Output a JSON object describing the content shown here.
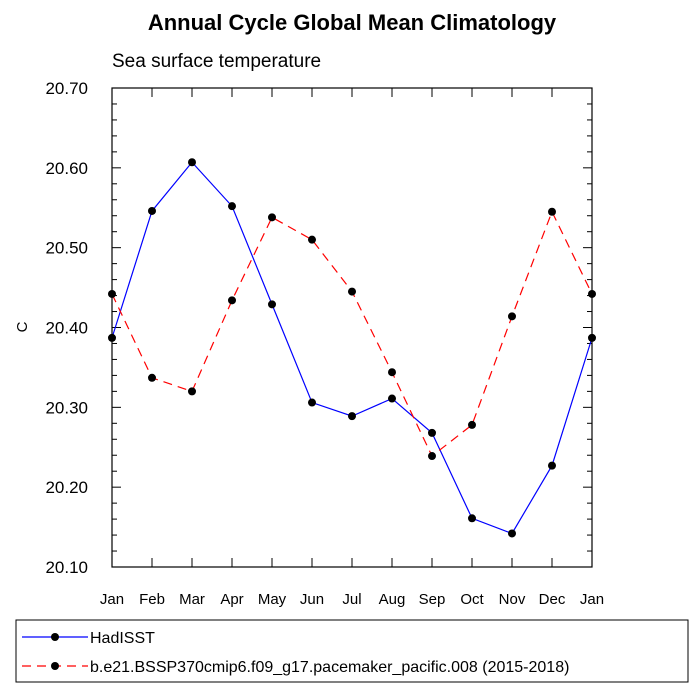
{
  "chart_data": {
    "type": "line",
    "title": "Annual Cycle Global Mean Climatology",
    "subtitle": "Sea surface temperature",
    "xlabel": "",
    "ylabel": "C",
    "ylim": [
      20.1,
      20.7
    ],
    "yticks": [
      20.1,
      20.2,
      20.3,
      20.4,
      20.5,
      20.6,
      20.7
    ],
    "ytick_labels": [
      "20.10",
      "20.20",
      "20.30",
      "20.40",
      "20.50",
      "20.60",
      "20.70"
    ],
    "categories": [
      "Jan",
      "Feb",
      "Mar",
      "Apr",
      "May",
      "Jun",
      "Jul",
      "Aug",
      "Sep",
      "Oct",
      "Nov",
      "Dec",
      "Jan"
    ],
    "grid": false,
    "legend_position": "bottom",
    "series": [
      {
        "name": "HadISST",
        "color": "#0000ff",
        "dash": "solid",
        "marker": "filled-circle",
        "values": [
          20.387,
          20.546,
          20.607,
          20.552,
          20.429,
          20.306,
          20.289,
          20.311,
          20.268,
          20.161,
          20.142,
          20.227,
          20.387
        ]
      },
      {
        "name": "b.e21.BSSP370cmip6.f09_g17.pacemaker_pacific.008 (2015-2018)",
        "color": "#ff0000",
        "dash": "dashed",
        "marker": "filled-circle",
        "values": [
          20.442,
          20.337,
          20.32,
          20.434,
          20.538,
          20.51,
          20.445,
          20.344,
          20.239,
          20.278,
          20.414,
          20.545,
          20.442
        ]
      }
    ]
  }
}
